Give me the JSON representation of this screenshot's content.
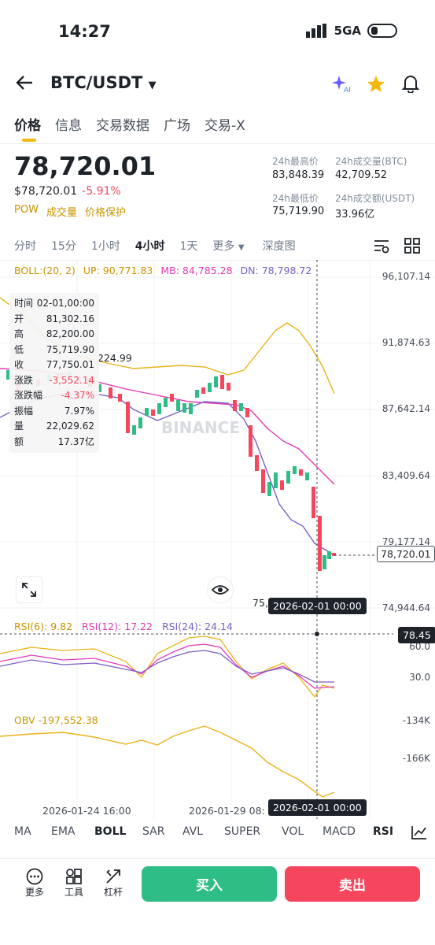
{
  "status": {
    "time": "14:27",
    "network": "5GA"
  },
  "header": {
    "pair": "BTC/USDT"
  },
  "tabs": [
    "价格",
    "信息",
    "交易数据",
    "广场",
    "交易-X"
  ],
  "price": {
    "last": "78,720.01",
    "fiat": "$78,720.01",
    "change": "-5.91%",
    "tags": [
      "POW",
      "成交量",
      "价格保护"
    ]
  },
  "stats": {
    "high_label": "24h最高价",
    "high": "83,848.39",
    "vol_btc_label": "24h成交量(BTC)",
    "vol_btc": "42,709.52",
    "low_label": "24h最低价",
    "low": "75,719.90",
    "vol_usdt_label": "24h成交额(USDT)",
    "vol_usdt": "33.96亿"
  },
  "intervals": {
    "items": [
      "分时",
      "15分",
      "1小时",
      "4小时",
      "1天"
    ],
    "more": "更多",
    "depth": "深度图",
    "active": "4小时"
  },
  "boll": {
    "label": "BOLL:(20, 2)",
    "up": "UP: 90,771.83",
    "mb": "MB: 84,785.28",
    "dn": "DN: 78,798.72"
  },
  "price_axis": [
    "96,107.14",
    "91,874.63",
    "87,642.14",
    "83,409.64",
    "79,177.14",
    "74,944.64"
  ],
  "chart_labels": {
    "high_mark": "224.99",
    "low_mark": "75,",
    "current": "78,720.01",
    "crosshair_time": "2026-02-01 00:00",
    "watermark": "BINANCE"
  },
  "tooltip": {
    "rows": [
      [
        "时间",
        "02-01,00:00"
      ],
      [
        "开",
        "81,302.16"
      ],
      [
        "高",
        "82,200.00"
      ],
      [
        "低",
        "75,719.90"
      ],
      [
        "收",
        "77,750.01"
      ],
      [
        "涨跌",
        "-3,552.14"
      ],
      [
        "涨跌幅",
        "-4.37%"
      ],
      [
        "振幅",
        "7.97%"
      ],
      [
        "量",
        "22,029.62"
      ],
      [
        "额",
        "17.37亿"
      ]
    ]
  },
  "rsi": {
    "r6": "RSI(6): 9.82",
    "r12": "RSI(12): 17.22",
    "r24": "RSI(24): 24.14",
    "axis": [
      "60.0",
      "30.0"
    ],
    "cross_value": "78.45"
  },
  "obv": {
    "label": "OBV -197,552.38",
    "axis": [
      "-134K",
      "-166K"
    ]
  },
  "time_axis": [
    "2026-01-24 16:00",
    "2026-01-29 08:",
    "2026-02-01 00:00"
  ],
  "indicators": {
    "items": [
      "MA",
      "EMA",
      "BOLL",
      "SAR",
      "AVL",
      "SUPER",
      "VOL",
      "MACD",
      "RSI"
    ],
    "active": [
      "BOLL",
      "RSI"
    ]
  },
  "footer": {
    "more": "更多",
    "tools": "工具",
    "leverage": "杠杆",
    "buy": "买入",
    "sell": "卖出"
  },
  "colors": {
    "up": "#2ebd85",
    "down": "#f6465d",
    "accent": "#f0b90b",
    "boll_up": "#e8b317",
    "boll_mb": "#e23ab6",
    "boll_dn": "#7b5fc7"
  }
}
